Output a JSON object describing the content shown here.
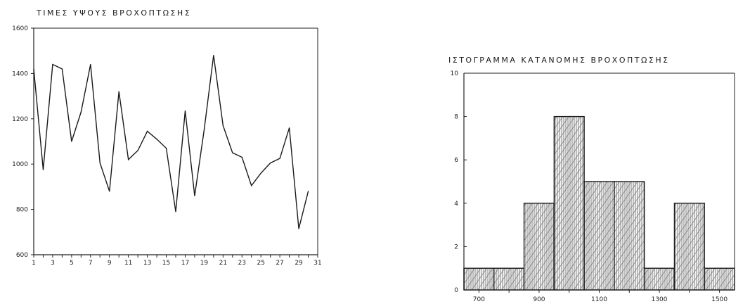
{
  "chart_data": [
    {
      "type": "line",
      "title": "ΤΙΜΕΣ ΥΨΟΥΣ ΒΡΟΧΟΠΤΩΣΗΣ",
      "xlabel": "",
      "ylabel": "",
      "xlim": [
        1,
        31
      ],
      "ylim": [
        600,
        1600
      ],
      "x_ticks": [
        "1",
        "3",
        "5",
        "7",
        "9",
        "11",
        "13",
        "15",
        "17",
        "19",
        "21",
        "23",
        "25",
        "27",
        "29",
        "31"
      ],
      "y_ticks": [
        "600",
        "800",
        "1000",
        "1200",
        "1400",
        "1600"
      ],
      "grid": false,
      "x": [
        1,
        2,
        3,
        4,
        5,
        6,
        7,
        8,
        9,
        10,
        11,
        12,
        13,
        14,
        15,
        16,
        17,
        18,
        19,
        20,
        21,
        22,
        23,
        24,
        25,
        26,
        27,
        28,
        29,
        30
      ],
      "values": [
        1420,
        975,
        1440,
        1420,
        1100,
        1230,
        1440,
        1005,
        880,
        1320,
        1020,
        1060,
        1145,
        1110,
        1070,
        790,
        1235,
        860,
        1150,
        1480,
        1170,
        1050,
        1030,
        905,
        960,
        1005,
        1025,
        1160,
        715,
        880
      ],
      "color": "#1a1a1a"
    },
    {
      "type": "bar",
      "title": "ΙΣΤΟΓΡΑΜΜΑ ΚΑΤΑΝΟΜΗΣ ΒΡΟΧΟΠΤΩΣΗΣ",
      "xlabel": "",
      "ylabel": "",
      "xlim": [
        650,
        1550
      ],
      "ylim": [
        0,
        10
      ],
      "x_ticks": [
        "700",
        "900",
        "1100",
        "1300",
        "1500"
      ],
      "y_ticks": [
        "0",
        "2",
        "4",
        "6",
        "8",
        "10"
      ],
      "grid": false,
      "bins": [
        {
          "start": 650,
          "end": 750,
          "count": 1
        },
        {
          "start": 750,
          "end": 850,
          "count": 1
        },
        {
          "start": 850,
          "end": 950,
          "count": 4
        },
        {
          "start": 950,
          "end": 1050,
          "count": 8
        },
        {
          "start": 1050,
          "end": 1150,
          "count": 5
        },
        {
          "start": 1150,
          "end": 1250,
          "count": 5
        },
        {
          "start": 1250,
          "end": 1350,
          "count": 1
        },
        {
          "start": 1350,
          "end": 1450,
          "count": 4
        },
        {
          "start": 1450,
          "end": 1550,
          "count": 1
        }
      ],
      "color": "#1a1a1a"
    }
  ]
}
